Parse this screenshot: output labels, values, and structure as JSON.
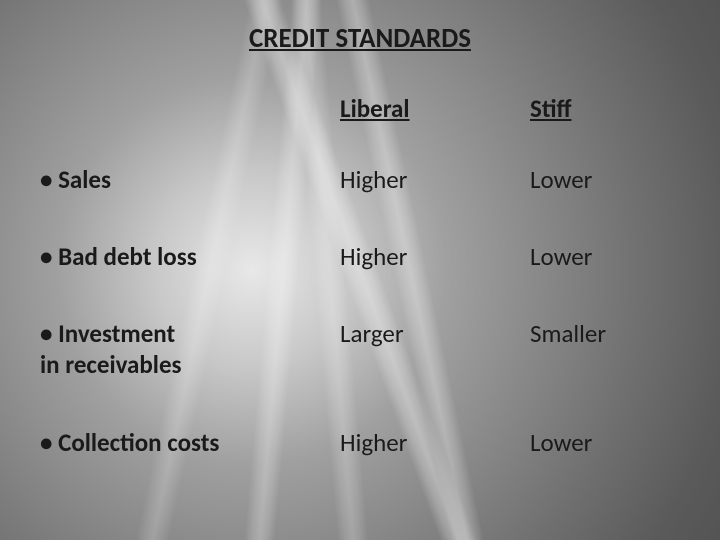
{
  "title": "CREDIT STANDARDS",
  "columns": {
    "c1": "Liberal",
    "c2": "Stiff"
  },
  "rows": [
    {
      "label": "• Sales",
      "c1": "Higher",
      "c2": "Lower",
      "multiline": false
    },
    {
      "label": "• Bad debt loss",
      "c1": "Higher",
      "c2": "Lower",
      "multiline": false
    },
    {
      "label": "• Investment\n   in receivables",
      "c1": "Larger",
      "c2": "Smaller",
      "multiline": true
    },
    {
      "label": "• Collection costs",
      "c1": "Higher",
      "c2": "Lower",
      "multiline": false
    }
  ],
  "style": {
    "text_color": "#1a1a1a",
    "title_fontsize": 27,
    "header_fontsize": 25,
    "body_fontsize": 25,
    "font_weight_title": "bold",
    "font_weight_header": "bold",
    "font_weight_label": "bold",
    "font_weight_cell": "normal",
    "bg_gradient_light": "#e8e8e8",
    "bg_gradient_dark": "#484848"
  }
}
